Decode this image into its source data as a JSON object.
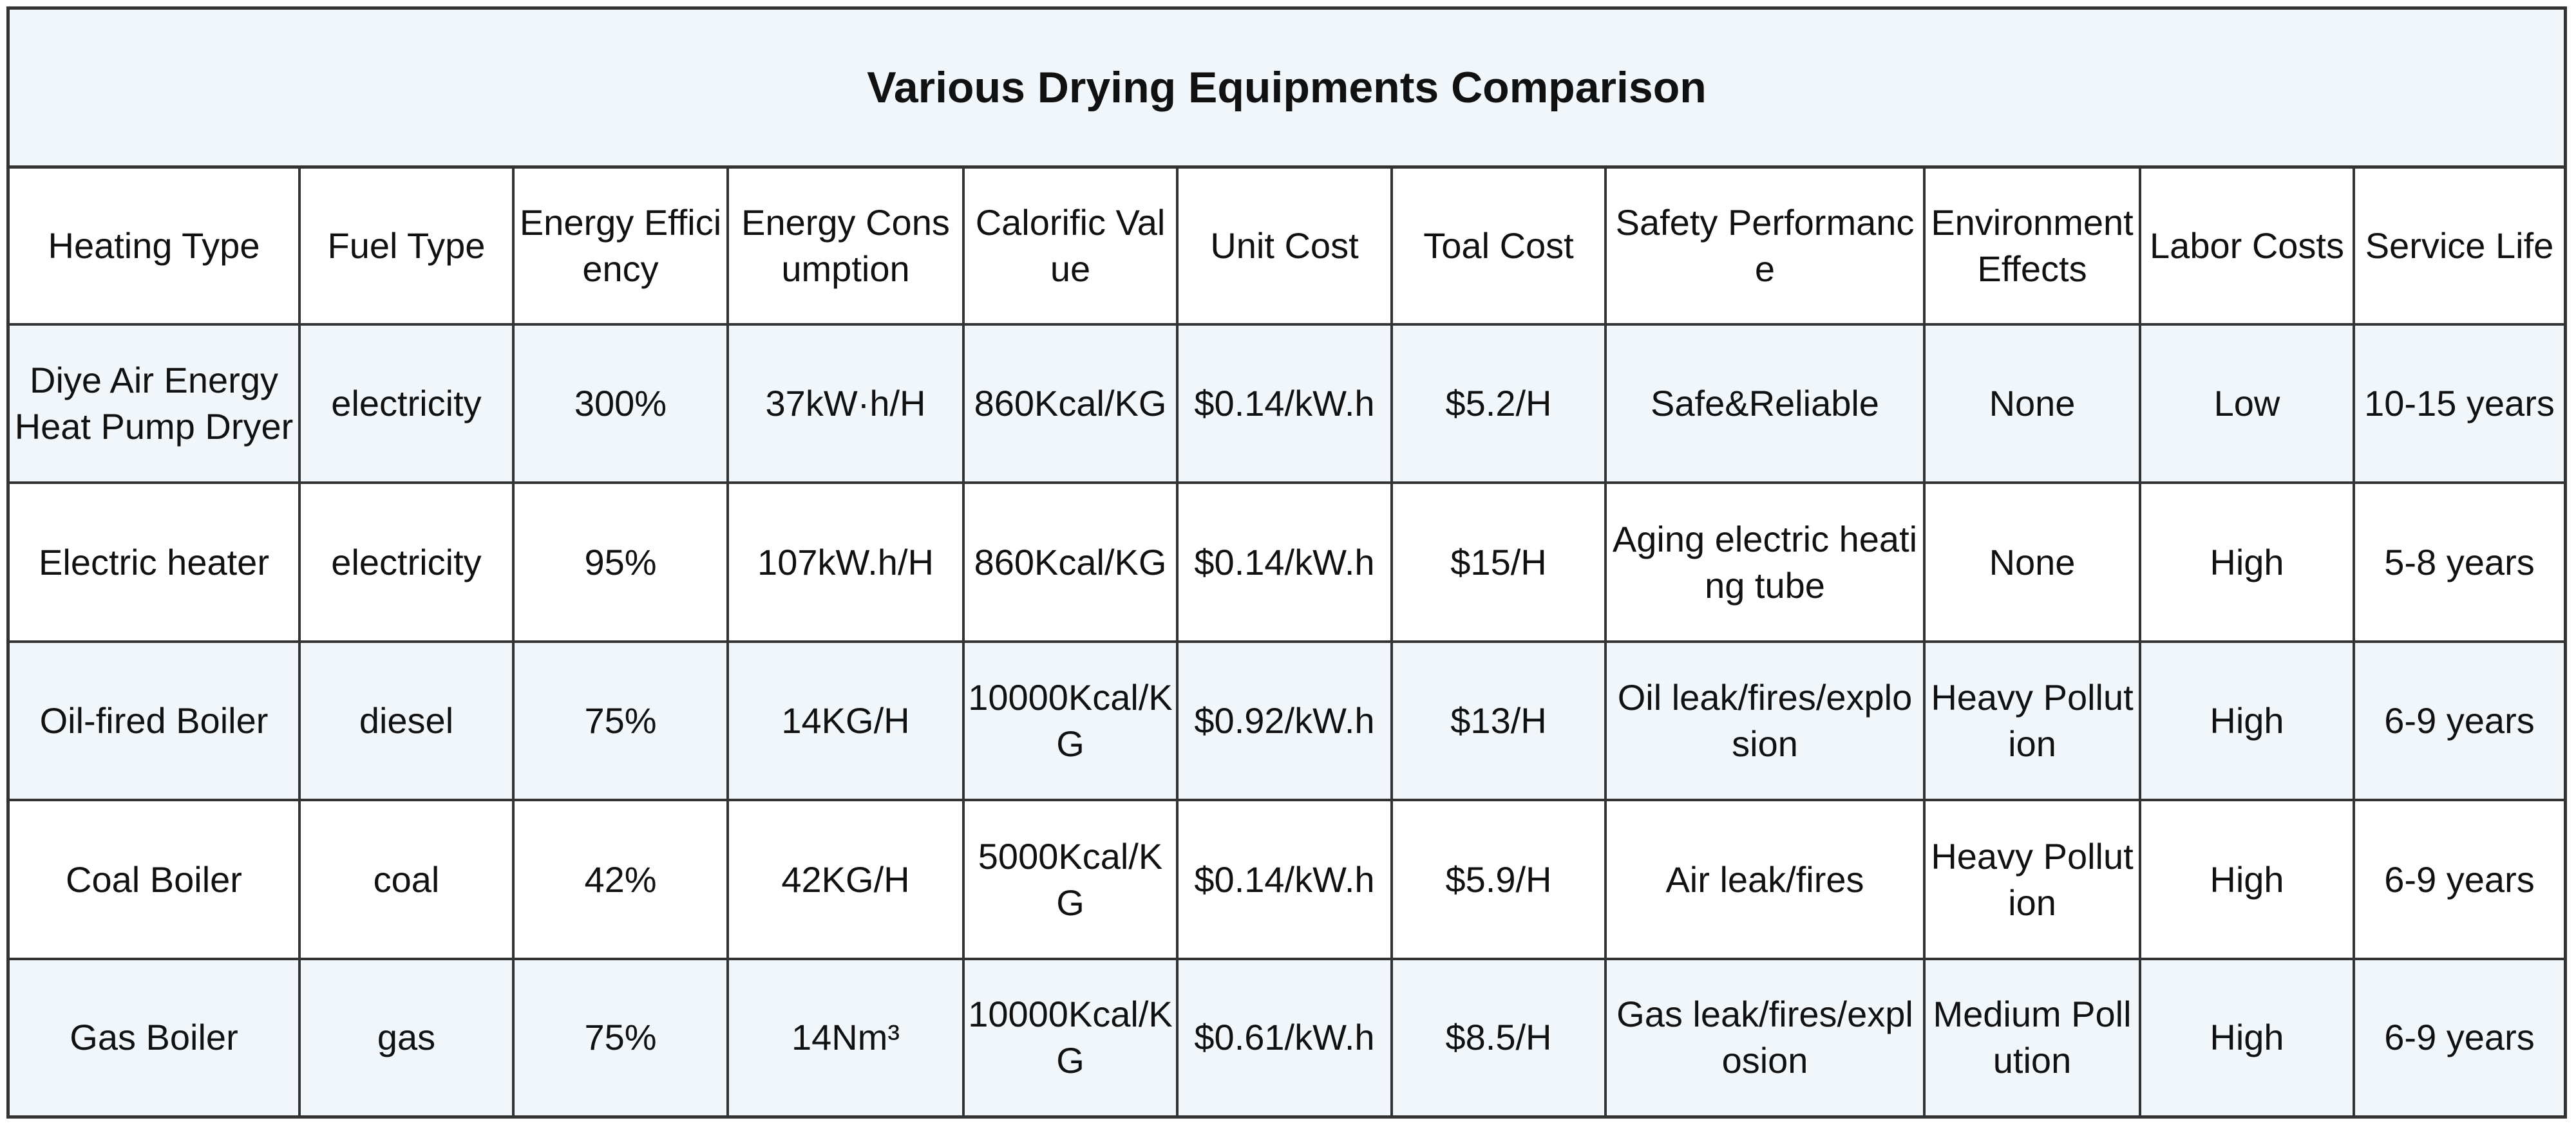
{
  "title": "Various Drying Equipments Comparison",
  "columns": [
    "Heating Type",
    "Fuel Type",
    "Energy Efficiency",
    "Energy Consumption",
    "Calorific Value",
    "Unit Cost",
    "Toal Cost",
    "Safety Performance",
    "Environment Effects",
    "Labor Costs",
    "Service Life"
  ],
  "rows": [
    [
      "Diye Air Energy Heat Pump Dryer",
      "electricity",
      "300%",
      "37kW·h/H",
      "860Kcal/KG",
      "$0.14/kW.h",
      "$5.2/H",
      "Safe&Reliable",
      "None",
      "Low",
      "10-15 years"
    ],
    [
      "Electric heater",
      "electricity",
      "95%",
      "107kW.h/H",
      "860Kcal/KG",
      "$0.14/kW.h",
      "$15/H",
      "Aging electric heating tube",
      "None",
      "High",
      "5-8 years"
    ],
    [
      "Oil-fired Boiler",
      "diesel",
      "75%",
      "14KG/H",
      "10000Kcal/KG",
      "$0.92/kW.h",
      "$13/H",
      "Oil leak/fires/explosion",
      "Heavy Pollution",
      "High",
      "6-9 years"
    ],
    [
      "Coal Boiler",
      "coal",
      "42%",
      "42KG/H",
      "5000Kcal/KG",
      "$0.14/kW.h",
      "$5.9/H",
      "Air leak/fires",
      "Heavy Pollution",
      "High",
      "6-9 years"
    ],
    [
      "Gas Boiler",
      "gas",
      "75%",
      "14Nm³",
      "10000Kcal/KG",
      "$0.61/kW.h",
      "$8.5/H",
      "Gas leak/fires/explosion",
      "Medium Pollution",
      "High",
      "6-9 years"
    ]
  ]
}
